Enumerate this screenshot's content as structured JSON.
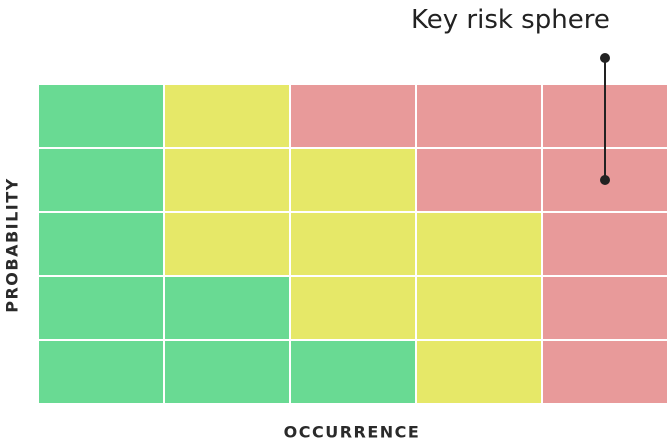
{
  "chart_data": {
    "type": "heatmap",
    "xlabel": "OCCURRENCE",
    "ylabel": "PROBABILITY",
    "rows": 5,
    "cols": 5,
    "levels": {
      "low": "#69da93",
      "medium": "#e6e868",
      "high": "#e89a9a"
    },
    "cells": [
      [
        "low",
        "medium",
        "high",
        "high",
        "high"
      ],
      [
        "low",
        "medium",
        "medium",
        "high",
        "high"
      ],
      [
        "low",
        "medium",
        "medium",
        "medium",
        "high"
      ],
      [
        "low",
        "low",
        "medium",
        "medium",
        "high"
      ],
      [
        "low",
        "low",
        "low",
        "medium",
        "high"
      ]
    ],
    "annotation": {
      "text": "Key risk sphere",
      "column": 5,
      "rows_spanned": [
        1,
        2
      ]
    }
  }
}
